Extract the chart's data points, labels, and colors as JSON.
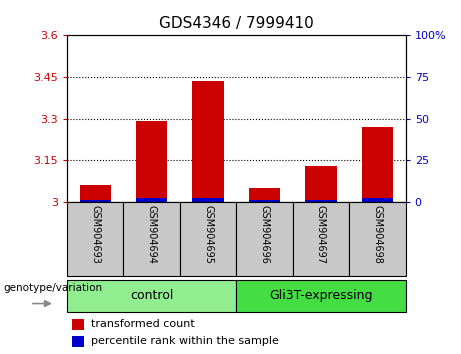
{
  "title": "GDS4346 / 7999410",
  "samples": [
    "GSM904693",
    "GSM904694",
    "GSM904695",
    "GSM904696",
    "GSM904697",
    "GSM904698"
  ],
  "red_values": [
    3.06,
    3.29,
    3.435,
    3.05,
    3.13,
    3.27
  ],
  "blue_values": [
    0.005,
    0.012,
    0.012,
    0.005,
    0.008,
    0.012
  ],
  "ymin": 3.0,
  "ymax": 3.6,
  "yticks": [
    3.0,
    3.15,
    3.3,
    3.45,
    3.6
  ],
  "ytick_labels": [
    "3",
    "3.15",
    "3.3",
    "3.45",
    "3.6"
  ],
  "right_yticks": [
    0,
    25,
    50,
    75,
    100
  ],
  "right_ytick_labels": [
    "0",
    "25",
    "50",
    "75",
    "100%"
  ],
  "groups": [
    {
      "label": "control",
      "start": 0,
      "end": 3,
      "color": "#90EE90"
    },
    {
      "label": "Gli3T-expressing",
      "start": 3,
      "end": 6,
      "color": "#44DD44"
    }
  ],
  "bar_width": 0.55,
  "red_color": "#CC0000",
  "blue_color": "#0000CC",
  "plot_bg": "#ffffff",
  "left_tick_color": "#CC0000",
  "right_tick_color": "#0000CC",
  "legend_red_label": "transformed count",
  "legend_blue_label": "percentile rank within the sample",
  "genotype_label": "genotype/variation",
  "sample_box_color": "#C8C8C8",
  "title_fontsize": 11,
  "bar_label_fontsize": 7,
  "group_label_fontsize": 9,
  "legend_fontsize": 8
}
